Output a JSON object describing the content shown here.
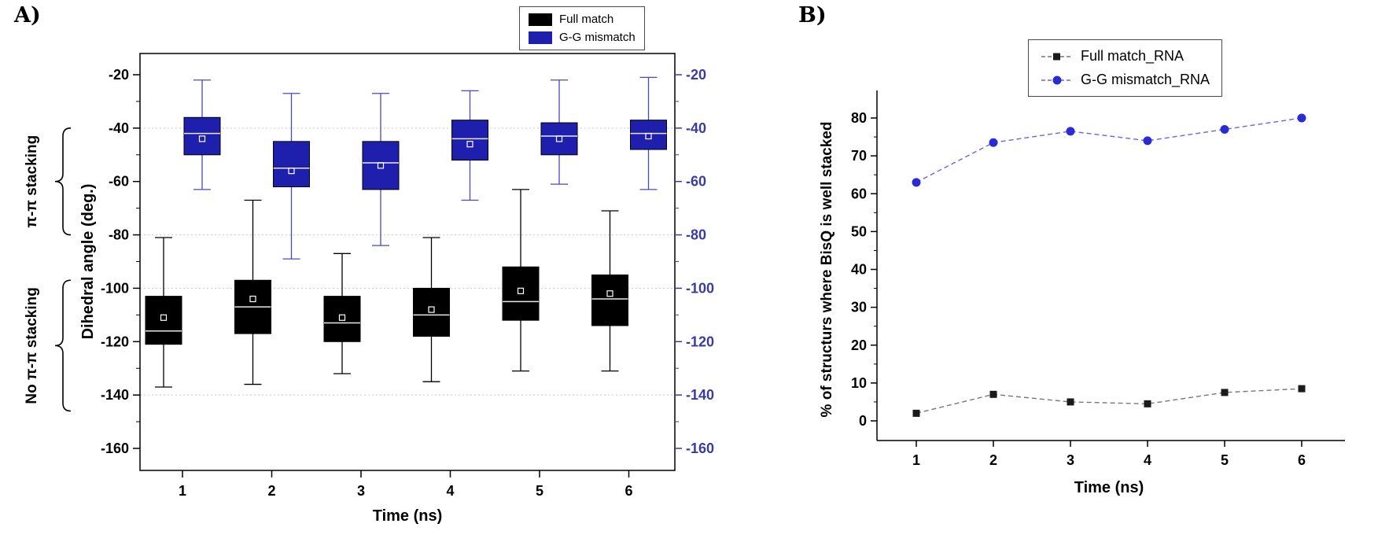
{
  "figure": {
    "panel_a_label": "A)",
    "panel_b_label": "B)"
  },
  "chart_data": [
    {
      "type": "boxplot",
      "panel": "A",
      "title": "",
      "xlabel": "Time (ns)",
      "ylabel": "Dihedral angle (deg.)",
      "categories": [
        "1",
        "2",
        "3",
        "4",
        "5",
        "6"
      ],
      "ylim": [
        -160,
        -20
      ],
      "yticks": [
        -20,
        -40,
        -60,
        -80,
        -100,
        -120,
        -140,
        -160
      ],
      "grid_values": [
        -40,
        -80,
        -100,
        -140
      ],
      "right_axis": true,
      "right_axis_color": "#3b3b9e",
      "grid_color": "#c9c9c9",
      "median_color": "#e8e8e8",
      "mean_marker_color": "#ffffff",
      "legend_position": "top-right",
      "annotations": [
        {
          "label": "π-π stacking",
          "from": -40,
          "to": -80
        },
        {
          "label": "No π-π stacking",
          "from": -97,
          "to": -146
        }
      ],
      "series": [
        {
          "name": "Full match",
          "color": "#000000",
          "whisker_color": "#000000",
          "boxes": [
            {
              "low": -137,
              "q1": -121,
              "median": -116,
              "mean": -111,
              "q3": -103,
              "high": -81
            },
            {
              "low": -136,
              "q1": -117,
              "median": -107,
              "mean": -104,
              "q3": -97,
              "high": -67
            },
            {
              "low": -132,
              "q1": -120,
              "median": -113,
              "mean": -111,
              "q3": -103,
              "high": -87
            },
            {
              "low": -135,
              "q1": -118,
              "median": -110,
              "mean": -108,
              "q3": -100,
              "high": -81
            },
            {
              "low": -131,
              "q1": -112,
              "median": -105,
              "mean": -101,
              "q3": -92,
              "high": -63
            },
            {
              "low": -131,
              "q1": -114,
              "median": -104,
              "mean": -102,
              "q3": -95,
              "high": -71
            }
          ]
        },
        {
          "name": "G-G mismatch",
          "color": "#1f1fae",
          "whisker_color": "#4848c0",
          "boxes": [
            {
              "low": -63,
              "q1": -50,
              "median": -42,
              "mean": -44,
              "q3": -36,
              "high": -22
            },
            {
              "low": -89,
              "q1": -62,
              "median": -55,
              "mean": -56,
              "q3": -45,
              "high": -27
            },
            {
              "low": -84,
              "q1": -63,
              "median": -53,
              "mean": -54,
              "q3": -45,
              "high": -27
            },
            {
              "low": -67,
              "q1": -52,
              "median": -44,
              "mean": -46,
              "q3": -37,
              "high": -26
            },
            {
              "low": -61,
              "q1": -50,
              "median": -43,
              "mean": -44,
              "q3": -38,
              "high": -22
            },
            {
              "low": -63,
              "q1": -48,
              "median": -42,
              "mean": -43,
              "q3": -37,
              "high": -21
            }
          ]
        }
      ]
    },
    {
      "type": "line",
      "panel": "B",
      "title": "",
      "xlabel": "Time (ns)",
      "ylabel": "% of structurs where BisQ is well stacked",
      "x": [
        1,
        2,
        3,
        4,
        5,
        6
      ],
      "ylim": [
        0,
        80
      ],
      "yticks": [
        0,
        10,
        20,
        30,
        40,
        50,
        60,
        70,
        80
      ],
      "legend_position": "top-right",
      "series": [
        {
          "name": "Full match_RNA",
          "color": "#1a1a1a",
          "line_color": "#777777",
          "marker": "square",
          "line_style": "dashed",
          "values": [
            2,
            7,
            5,
            4.5,
            7.5,
            8.5
          ]
        },
        {
          "name": "G-G mismatch_RNA",
          "color": "#2b2bd5",
          "line_color": "#6666e0",
          "marker": "circle",
          "line_style": "dashed",
          "values": [
            63,
            73.5,
            76.5,
            74,
            77,
            80
          ]
        }
      ]
    }
  ]
}
